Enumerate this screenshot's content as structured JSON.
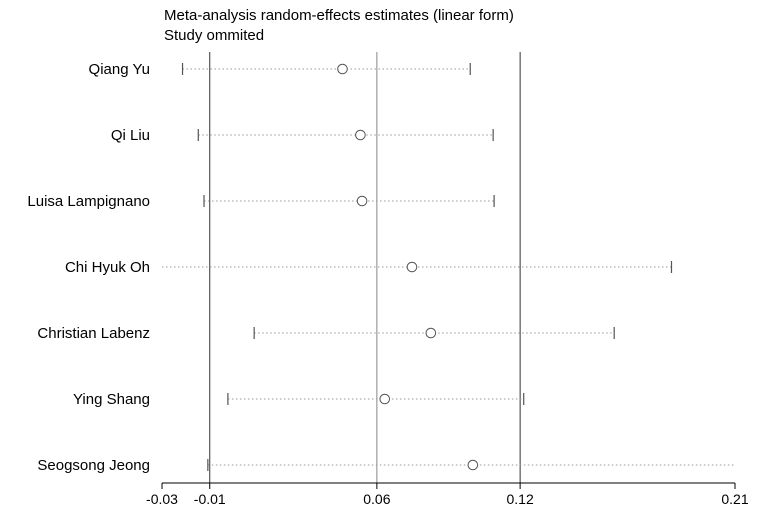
{
  "chart_data": {
    "type": "forest",
    "title": "Meta-analysis random-effects estimates (linear form)",
    "subtitle": "Study ommited",
    "xlim": [
      -0.03,
      0.21
    ],
    "ticks": [
      -0.03,
      -0.01,
      0.06,
      0.12,
      0.21
    ],
    "tick_labels": [
      "-0.03",
      "-0.01",
      "0.06",
      "0.12",
      "0.21"
    ],
    "reference_lines": [
      -0.01,
      0.12
    ],
    "center_line": 0.06,
    "studies": [
      {
        "label": "Qiang Yu",
        "estimate": 0.0456,
        "lower": -0.0214,
        "upper": 0.0991
      },
      {
        "label": "Qi Liu",
        "estimate": 0.0531,
        "lower": -0.0148,
        "upper": 0.1087
      },
      {
        "label": "Luisa Lampignano",
        "estimate": 0.0538,
        "lower": -0.0124,
        "upper": 0.1091
      },
      {
        "label": "Chi Hyuk Oh",
        "estimate": 0.0747,
        "lower": -0.03,
        "upper": 0.1834
      },
      {
        "label": "Christian Labenz",
        "estimate": 0.0826,
        "lower": 0.0086,
        "upper": 0.1594
      },
      {
        "label": "Ying Shang",
        "estimate": 0.0633,
        "lower": -0.0024,
        "upper": 0.1215
      },
      {
        "label": "Seogsong Jeong",
        "estimate": 0.1002,
        "lower": -0.0108,
        "upper": 0.21
      }
    ]
  }
}
